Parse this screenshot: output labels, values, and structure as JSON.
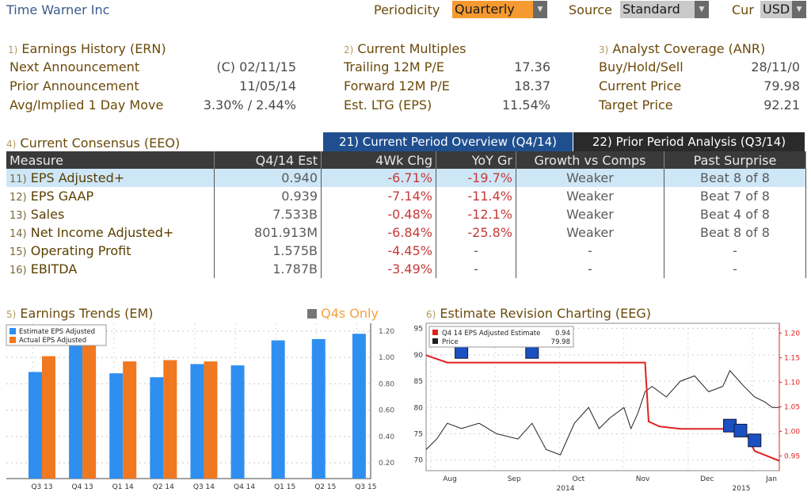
{
  "header": {
    "title": "Time Warner Inc",
    "periodicity_label": "Periodicity",
    "periodicity_value": "Quarterly",
    "source_label": "Source",
    "source_value": "Standard",
    "cur_label": "Cur",
    "cur_value": "USD"
  },
  "earnings_history": {
    "num": "1)",
    "title": "Earnings History (ERN)",
    "rows": [
      {
        "label": "Next Announcement",
        "value": "(C)  02/11/15"
      },
      {
        "label": "Prior Announcement",
        "value": "11/05/14"
      },
      {
        "label": "Avg/Implied 1 Day Move",
        "value": "3.30% / 2.44%"
      }
    ]
  },
  "current_multiples": {
    "num": "2)",
    "title": "Current Multiples",
    "rows": [
      {
        "label": "Trailing 12M P/E",
        "value": "17.36"
      },
      {
        "label": "Forward 12M P/E",
        "value": "18.37"
      },
      {
        "label": "Est. LTG (EPS)",
        "value": "11.54%"
      }
    ]
  },
  "analyst_coverage": {
    "num": "3)",
    "title": "Analyst Coverage (ANR)",
    "rows": [
      {
        "label": "Buy/Hold/Sell",
        "value": "28/11/0"
      },
      {
        "label": "Current Price",
        "value": "79.98"
      },
      {
        "label": "Target Price",
        "value": "92.21"
      }
    ]
  },
  "consensus": {
    "num": "4)",
    "title": "Current Consensus (EEO)",
    "tab1": "21) Current Period Overview (Q4/14)",
    "tab2": "22) Prior Period Analysis (Q3/14)",
    "headers": [
      "Measure",
      "Q4/14 Est",
      "4Wk Chg",
      "YoY Gr",
      "Growth vs Comps",
      "Past Surprise"
    ],
    "rows": [
      {
        "n": "11)",
        "measure": "EPS Adjusted+",
        "est": "0.940",
        "chg": "-6.71%",
        "yoy": "-19.7%",
        "growth": "Weaker",
        "surprise": "Beat 8 of 8"
      },
      {
        "n": "12)",
        "measure": "EPS GAAP",
        "est": "0.939",
        "chg": "-7.14%",
        "yoy": "-11.4%",
        "growth": "Weaker",
        "surprise": "Beat 7 of 8"
      },
      {
        "n": "13)",
        "measure": "Sales",
        "est": "7.533B",
        "chg": "-0.48%",
        "yoy": "-12.1%",
        "growth": "Weaker",
        "surprise": "Beat 4 of 8"
      },
      {
        "n": "14)",
        "measure": "Net Income Adjusted+",
        "est": "801.913M",
        "chg": "-6.84%",
        "yoy": "-25.8%",
        "growth": "Weaker",
        "surprise": "Beat 8 of 8"
      },
      {
        "n": "15)",
        "measure": "Operating Profit",
        "est": "1.575B",
        "chg": "-4.45%",
        "yoy": "-",
        "growth": "-",
        "surprise": "-"
      },
      {
        "n": "16)",
        "measure": "EBITDA",
        "est": "1.787B",
        "chg": "-3.49%",
        "yoy": "-",
        "growth": "-",
        "surprise": "-"
      }
    ]
  },
  "earnings_trends": {
    "num": "5)",
    "title": "Earnings Trends (EM)",
    "toggle_label": "Q4s Only"
  },
  "estimate_revision": {
    "num": "6)",
    "title": "Estimate Revision Charting (EEG)"
  },
  "colors": {
    "estimate_bar": "#2f8ff0",
    "actual_bar": "#f07820",
    "estimate_line": "#e02020",
    "price_line": "#202020",
    "highlight": "#f5a040"
  },
  "chart_data": [
    {
      "type": "bar",
      "categories": [
        "Q3 13",
        "Q4 13",
        "Q1 14",
        "Q2 14",
        "Q3 14",
        "Q4 14",
        "Q1 15",
        "Q2 15",
        "Q3 15"
      ],
      "series": [
        {
          "name": "Estimate EPS Adjusted",
          "values": [
            0.89,
            1.11,
            0.88,
            0.85,
            0.95,
            0.94,
            1.13,
            1.14,
            1.18
          ]
        },
        {
          "name": "Actual EPS Adjusted",
          "values": [
            1.01,
            1.11,
            0.97,
            0.98,
            0.97,
            null,
            null,
            null,
            null
          ]
        }
      ],
      "ylim": [
        0.08,
        1.26
      ],
      "yticks": [
        "1.20",
        "1.00",
        "0.80",
        "0.60",
        "0.40",
        "0.20"
      ],
      "grid": true,
      "legend": "top-left"
    },
    {
      "type": "line",
      "x_labels": [
        "Aug",
        "Sep",
        "Oct",
        "Nov",
        "Dec",
        "Jan"
      ],
      "year_labels": [
        "2014",
        "2015"
      ],
      "left_axis": {
        "ticks": [
          "95",
          "90",
          "85",
          "80",
          "75",
          "70"
        ],
        "range": [
          68,
          96
        ]
      },
      "right_axis": {
        "ticks": [
          "1.20",
          "1.15",
          "1.10",
          "1.05",
          "1.00",
          "0.95"
        ],
        "range": [
          0.92,
          1.22
        ]
      },
      "series": [
        {
          "name": "Q4 14 EPS Adjusted Estimate",
          "legend_value": "0.94",
          "x": [
            0,
            0.02,
            0.06,
            0.3,
            0.5,
            0.62,
            0.63,
            0.66,
            0.72,
            0.84,
            0.9,
            0.93,
            1.0
          ],
          "values": [
            1.155,
            1.15,
            1.14,
            1.14,
            1.14,
            1.14,
            1.02,
            1.01,
            1.005,
            1.005,
            1.005,
            0.96,
            0.94
          ]
        },
        {
          "name": "Price",
          "legend_value": "79.98",
          "x": [
            0,
            0.03,
            0.06,
            0.1,
            0.15,
            0.2,
            0.26,
            0.3,
            0.34,
            0.38,
            0.42,
            0.46,
            0.49,
            0.52,
            0.56,
            0.58,
            0.6,
            0.62,
            0.64,
            0.68,
            0.72,
            0.76,
            0.8,
            0.84,
            0.86,
            0.9,
            0.93,
            0.96,
            0.98,
            1.0
          ],
          "values": [
            72,
            74,
            77,
            76,
            77,
            75,
            74,
            77,
            72,
            71,
            77,
            80,
            76,
            78,
            80,
            76,
            79,
            83,
            84,
            82,
            85,
            86,
            83,
            84,
            87,
            84,
            82,
            81,
            80,
            80
          ]
        }
      ],
      "grid": true,
      "legend": "top-left"
    }
  ]
}
